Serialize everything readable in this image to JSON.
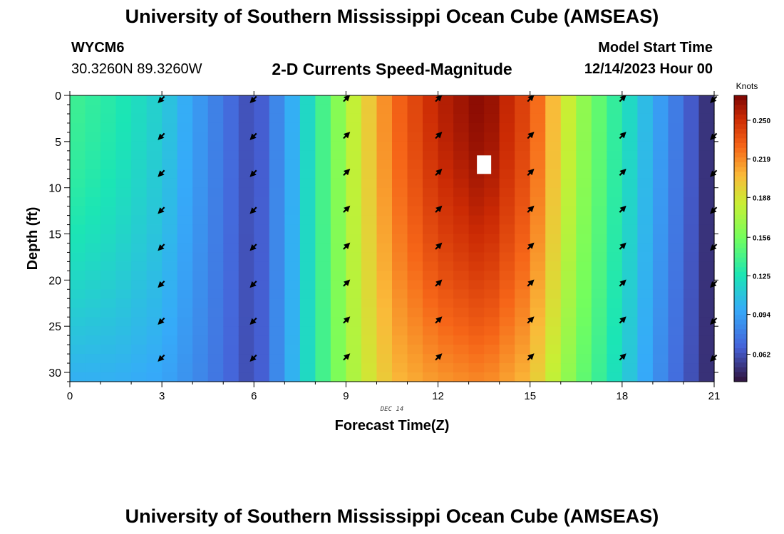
{
  "header": {
    "title": "University of Southern Mississippi Ocean Cube (AMSEAS)",
    "station_id": "WYCM6",
    "station_coords": "30.3260N  89.3260W",
    "subtitle": "2-D Currents Speed-Magnitude",
    "model_start_label": "Model Start Time",
    "model_start_value": "12/14/2023 Hour 00"
  },
  "footer": {
    "title": "University of Southern Mississippi Ocean Cube (AMSEAS)"
  },
  "chart_data": {
    "type": "heatmap",
    "title": "2-D Currents Speed-Magnitude",
    "xlabel": "Forecast Time(Z)",
    "ylabel": "Depth (ft)",
    "date_label": "DEC 14",
    "xlim": [
      0,
      21
    ],
    "ylim": [
      31,
      0
    ],
    "xticks": [
      0,
      3,
      6,
      9,
      12,
      15,
      18,
      21
    ],
    "yticks": [
      0,
      5,
      10,
      15,
      20,
      25,
      30
    ],
    "colorbar": {
      "label": "Knots",
      "ticks": [
        "0.250",
        "0.219",
        "0.188",
        "0.156",
        "0.125",
        "0.094",
        "0.062"
      ],
      "tick_values": [
        0.25,
        0.219,
        0.188,
        0.156,
        0.125,
        0.094,
        0.062
      ],
      "range": [
        0.04,
        0.27
      ]
    },
    "time_nodes": [
      0,
      1.5,
      3,
      4.5,
      6,
      7.5,
      9,
      10.5,
      12,
      13.5,
      15,
      16.5,
      18,
      19.5,
      21
    ],
    "speed_top": [
      0.138,
      0.128,
      0.113,
      0.085,
      0.058,
      0.108,
      0.172,
      0.226,
      0.255,
      0.268,
      0.238,
      0.172,
      0.126,
      0.085,
      0.045
    ],
    "speed_bottom": [
      0.1,
      0.1,
      0.096,
      0.08,
      0.058,
      0.11,
      0.168,
      0.205,
      0.215,
      0.22,
      0.205,
      0.155,
      0.116,
      0.078,
      0.045
    ],
    "missing_cell": {
      "time": 13.5,
      "depth": 7.5
    },
    "vectors": {
      "times": [
        3,
        6,
        9,
        12,
        15,
        18,
        21
      ],
      "depths": [
        0,
        4,
        8,
        12,
        16,
        20,
        24,
        28
      ],
      "directions": [
        "SW",
        "SW",
        "NE",
        "NE",
        "NE",
        "NE",
        "SW"
      ]
    }
  }
}
